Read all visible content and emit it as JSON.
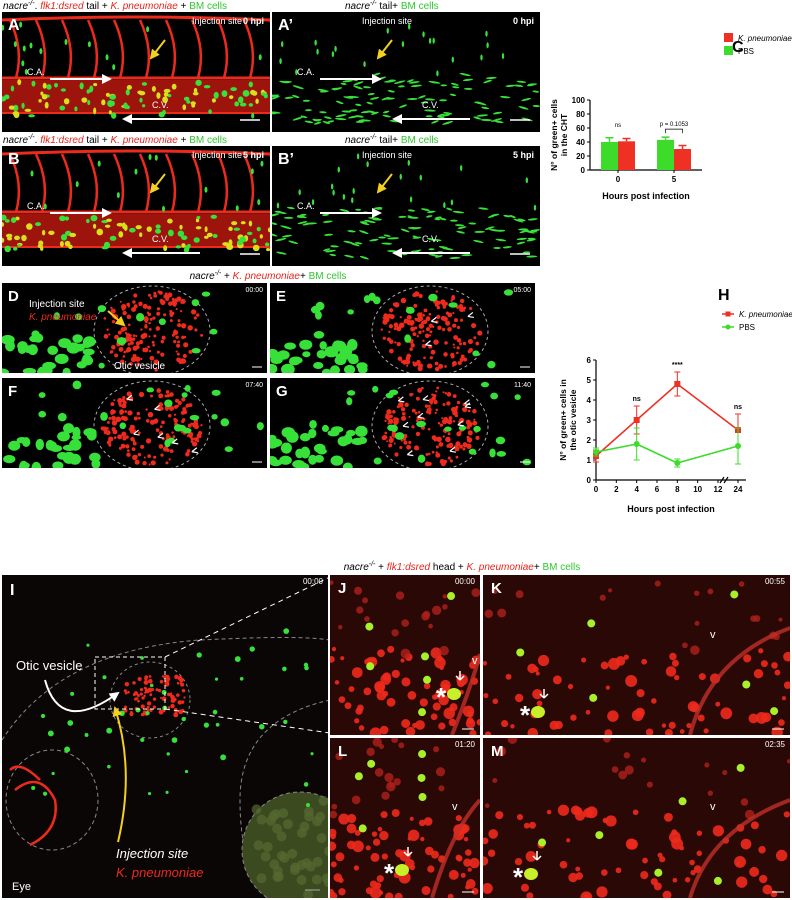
{
  "captions": {
    "row_a": [
      "nacre",
      "-/-",
      ". ",
      "flk1:dsred",
      " tail + ",
      "K. pneumoniae",
      " + ",
      "BM cells"
    ],
    "row_a2": [
      "nacre",
      "-/-",
      " tail+ ",
      "BM cells"
    ],
    "row_b": [
      "nacre",
      "-/-",
      ". ",
      "flk1:dsred",
      " tail + ",
      "K. pneumoniae",
      " + ",
      "BM cells"
    ],
    "row_b2": [
      "nacre",
      "-/-",
      " tail+ ",
      "BM cells"
    ],
    "row_d": [
      "nacre",
      "-/-",
      " + ",
      "K. pneumoniae",
      "+ ",
      "BM cells"
    ],
    "row_i": [
      "nacre",
      "-/-",
      " + ",
      "flk1:dsred",
      " head + ",
      "K. pneumoniae",
      "+ ",
      "BM cells"
    ]
  },
  "panels_top": [
    {
      "label": "A",
      "time": "0 hpi",
      "injection": "Injection site",
      "ca": "C.A.",
      "cv": "C.V."
    },
    {
      "label": "A’",
      "time": "0 hpi",
      "injection": "Injection site",
      "ca": "C.A.",
      "cv": "C.V."
    },
    {
      "label": "B",
      "time": "5 hpi",
      "injection": "Injection site",
      "ca": "C.A.",
      "cv": "C.V."
    },
    {
      "label": "B’",
      "time": "5 hpi",
      "injection": "Injection site",
      "ca": "C.A.",
      "cv": "C.V."
    }
  ],
  "panels_mid": [
    {
      "label": "D",
      "time": "00:00",
      "injection": "Injection site",
      "bacteria": "K. pneumoniae",
      "vesicle": "Otic vesicle"
    },
    {
      "label": "E",
      "time": "05:00"
    },
    {
      "label": "F",
      "time": "07:40"
    },
    {
      "label": "G",
      "time": "11:40"
    }
  ],
  "panels_bottom": [
    {
      "label": "I",
      "time": "00:00",
      "vesicle": "Otic vesicle",
      "injection": "Injection site",
      "bacteria": "K. pneumoniae",
      "eye": "Eye"
    },
    {
      "label": "J",
      "time": "00:00",
      "vessel": "v",
      "cell": "*"
    },
    {
      "label": "K",
      "time": "00:55",
      "vessel": "v",
      "cell": "*"
    },
    {
      "label": "L",
      "time": "01:20",
      "vessel": "v",
      "cell": "*"
    },
    {
      "label": "M",
      "time": "02:35",
      "vessel": "v",
      "cell": "*"
    }
  ],
  "chart_data": [
    {
      "type": "bar",
      "panel": "C",
      "categories": [
        "0",
        "5"
      ],
      "series": [
        {
          "name": "K. pneumoniae",
          "color": "#ee3124",
          "values": [
            41,
            30
          ],
          "errors": [
            4,
            5
          ]
        },
        {
          "name": "PBS",
          "color": "#3ddc2a",
          "values": [
            40,
            43
          ],
          "errors": [
            6,
            4
          ]
        }
      ],
      "ylim": [
        0,
        100
      ],
      "yticks": [
        0,
        20,
        40,
        60,
        80,
        100
      ],
      "ylabel": [
        "N° of green+ cells",
        "in the CHT"
      ],
      "xlabel": "Hours post infection",
      "annotations": [
        "ns",
        "p = 0.1053"
      ],
      "annotation_brackets": [
        false,
        true
      ]
    },
    {
      "type": "line",
      "panel": "H",
      "x": [
        0,
        4,
        8,
        24
      ],
      "series": [
        {
          "name": "K. pneumoniae",
          "color": "#ee3124",
          "marker": "square",
          "values": [
            1.2,
            3.0,
            4.8,
            2.5
          ],
          "errors": [
            0.3,
            0.7,
            0.6,
            0.8
          ]
        },
        {
          "name": "PBS",
          "color": "#3ddc2a",
          "marker": "circle",
          "values": [
            1.4,
            1.8,
            0.85,
            1.7
          ],
          "errors": [
            0.2,
            0.8,
            0.2,
            0.9
          ]
        }
      ],
      "xlim": [
        0,
        24
      ],
      "x_break": 12,
      "xticks": [
        0,
        2,
        4,
        6,
        8,
        10,
        12,
        24
      ],
      "ylim": [
        0,
        6
      ],
      "yticks": [
        0,
        1,
        2,
        3,
        4,
        5,
        6
      ],
      "ylabel": [
        "N° of green+ cells in",
        "the otic vesicle"
      ],
      "xlabel": "Hours post infection",
      "annotations": [
        "ns",
        "****",
        "ns"
      ]
    }
  ]
}
